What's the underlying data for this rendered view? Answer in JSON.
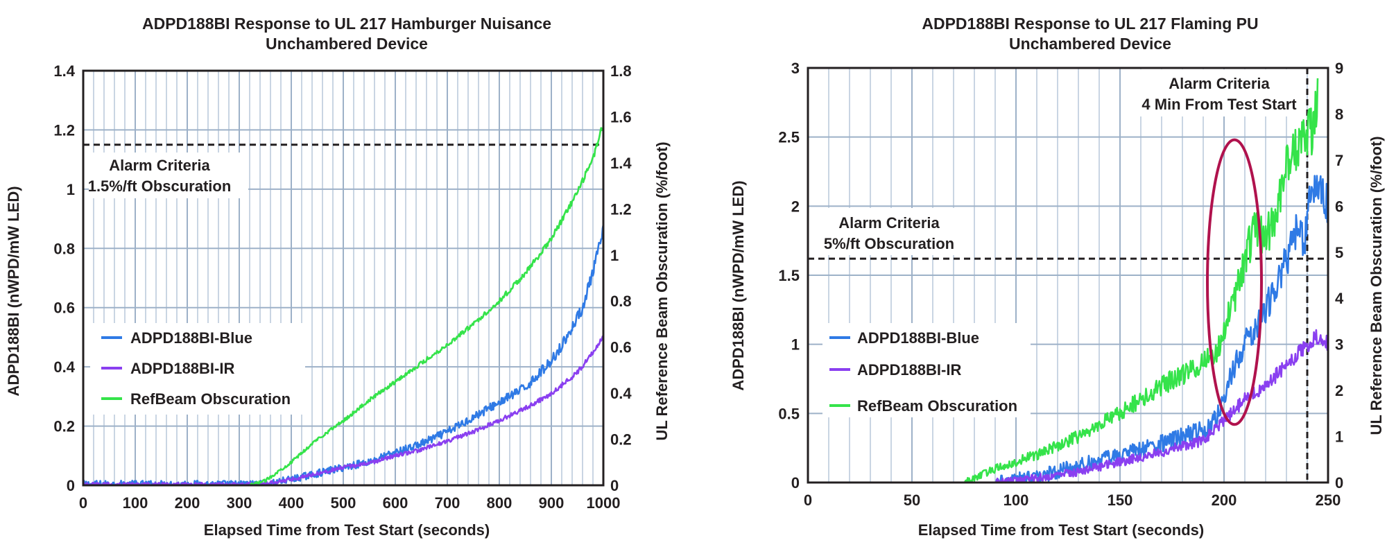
{
  "chart_data": [
    {
      "type": "line",
      "title": "ADPD188BI Response to UL 217 Hamburger Nuisance",
      "subtitle": "Unchambered Device",
      "xlabel": "Elapsed Time from Test Start (seconds)",
      "ylabel": "ADPD188BI (nWPD/mW LED)",
      "y2label": "UL Reference Beam Obscuration (%/foot)",
      "xlim": [
        0,
        1000
      ],
      "ylim": [
        0,
        1.4
      ],
      "y2lim": [
        0,
        1.8
      ],
      "xticks": [
        0,
        100,
        200,
        300,
        400,
        500,
        600,
        700,
        800,
        900,
        1000
      ],
      "yticks": [
        0,
        0.2,
        0.4,
        0.6,
        0.8,
        1,
        1.2,
        1.4
      ],
      "y2ticks": [
        0,
        0.2,
        0.4,
        0.6,
        0.8,
        1,
        1.2,
        1.4,
        1.6,
        1.8
      ],
      "grid": true,
      "legend_position": "bottom-left",
      "series": [
        {
          "name": "ADPD188BI-Blue",
          "color": "#2f7ae5",
          "axis": "left",
          "x": [
            0,
            300,
            350,
            400,
            450,
            500,
            550,
            600,
            650,
            700,
            750,
            800,
            850,
            900,
            930,
            960,
            980,
            1000
          ],
          "y": [
            0.004,
            0.004,
            0.005,
            0.02,
            0.04,
            0.06,
            0.08,
            0.11,
            0.14,
            0.18,
            0.23,
            0.28,
            0.33,
            0.42,
            0.5,
            0.6,
            0.72,
            0.86
          ],
          "noise": 0.012
        },
        {
          "name": "ADPD188BI-IR",
          "color": "#8a3ff0",
          "axis": "left",
          "x": [
            0,
            300,
            350,
            400,
            450,
            500,
            550,
            600,
            650,
            700,
            750,
            800,
            850,
            900,
            950,
            1000
          ],
          "y": [
            0.003,
            0.003,
            0.005,
            0.02,
            0.04,
            0.06,
            0.075,
            0.1,
            0.12,
            0.15,
            0.18,
            0.22,
            0.26,
            0.31,
            0.38,
            0.5
          ],
          "noise": 0.006
        },
        {
          "name": "RefBeam Obscuration",
          "color": "#35e34a",
          "axis": "right",
          "x": [
            0,
            320,
            350,
            400,
            450,
            500,
            550,
            600,
            650,
            700,
            750,
            800,
            850,
            900,
            950,
            980,
            1000
          ],
          "y": [
            0,
            0,
            0.02,
            0.1,
            0.2,
            0.28,
            0.37,
            0.45,
            0.53,
            0.61,
            0.7,
            0.8,
            0.92,
            1.07,
            1.27,
            1.42,
            1.57
          ],
          "noise": 0.006
        }
      ],
      "annotations": [
        {
          "type": "hline",
          "axis": "left",
          "value": 1.15,
          "style": "dashed"
        },
        {
          "type": "text",
          "lines": [
            "Alarm Criteria",
            "1.5%/ft Obscuration"
          ]
        }
      ],
      "ellipse": null
    },
    {
      "type": "line",
      "title": "ADPD188BI Response to UL 217 Flaming PU",
      "subtitle": "Unchambered Device",
      "xlabel": "Elapsed Time from Test Start (seconds)",
      "ylabel": "ADPD188BI (nWPD/mW  LED)",
      "y2label": "UL Reference Beam Obscuration (%/foot)",
      "xlim": [
        0,
        250
      ],
      "ylim": [
        0,
        3
      ],
      "y2lim": [
        0,
        9
      ],
      "xticks": [
        0,
        50,
        100,
        150,
        200,
        250
      ],
      "yticks": [
        0,
        0.5,
        1,
        1.5,
        2,
        2.5,
        3
      ],
      "y2ticks": [
        0,
        1,
        2,
        3,
        4,
        5,
        6,
        7,
        8,
        9
      ],
      "grid": true,
      "legend_position": "bottom-left",
      "series": [
        {
          "name": "ADPD188BI-Blue",
          "color": "#2f7ae5",
          "axis": "left",
          "x": [
            0,
            90,
            110,
            130,
            150,
            170,
            190,
            198,
            205,
            210,
            218,
            225,
            232,
            236,
            238,
            242,
            246,
            250
          ],
          "y": [
            0,
            0,
            0.04,
            0.12,
            0.2,
            0.28,
            0.38,
            0.5,
            0.85,
            1.0,
            1.2,
            1.4,
            1.7,
            1.9,
            1.7,
            2.1,
            2.1,
            2.0
          ],
          "noise": 0.05
        },
        {
          "name": "ADPD188BI-IR",
          "color": "#8a3ff0",
          "axis": "left",
          "x": [
            0,
            90,
            110,
            130,
            150,
            170,
            190,
            200,
            210,
            220,
            230,
            240,
            245,
            250
          ],
          "y": [
            0,
            0,
            0.03,
            0.08,
            0.15,
            0.22,
            0.3,
            0.45,
            0.6,
            0.7,
            0.85,
            1.0,
            1.05,
            1.0
          ],
          "noise": 0.03
        },
        {
          "name": "RefBeam Obscuration",
          "color": "#35e34a",
          "axis": "right",
          "x": [
            0,
            75,
            90,
            110,
            130,
            150,
            170,
            190,
            196,
            200,
            205,
            210,
            215,
            220,
            225,
            230,
            235,
            238,
            242,
            245
          ],
          "y": [
            0,
            0,
            0.3,
            0.6,
            1.0,
            1.5,
            2.1,
            2.6,
            2.8,
            3.3,
            4.0,
            4.8,
            5.6,
            5.3,
            5.8,
            6.8,
            7.2,
            7.8,
            7.6,
            8.4
          ],
          "noise": 0.07
        }
      ],
      "annotations": [
        {
          "type": "hline",
          "axis": "left",
          "value": 1.62,
          "style": "dashed"
        },
        {
          "type": "vline",
          "value": 240,
          "style": "dashed"
        },
        {
          "type": "text",
          "lines": [
            "Alarm Criteria",
            "5%/ft Obscuration"
          ]
        },
        {
          "type": "text",
          "lines": [
            "Alarm Criteria",
            "4 Min From Test Start"
          ]
        }
      ],
      "ellipse": {
        "cx": 205,
        "cy": 1.45,
        "rx": 13,
        "ry": 1.03,
        "color": "#b0124d"
      }
    }
  ]
}
